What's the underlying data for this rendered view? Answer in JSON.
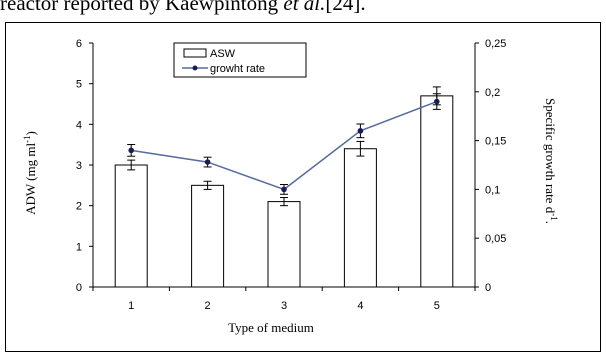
{
  "caption": {
    "prefix": "reactor reported by Kaewpintong ",
    "etal": "et al.",
    "ref": "[24]."
  },
  "chart_data": {
    "type": "bar",
    "categories": [
      "1",
      "2",
      "3",
      "4",
      "5"
    ],
    "xlabel": "Type of medium",
    "ylabel_left_main": "ADW (mg ml",
    "ylabel_left_sup": "-1",
    "ylabel_left_end": ")",
    "ylabel_right_main": "Specific growth rate d",
    "ylabel_right_sup": "-1",
    "ylabel_right_end": ".",
    "ylim_left": [
      0,
      6
    ],
    "ylim_right": [
      0,
      0.25
    ],
    "yticks_left": [
      "0",
      "1",
      "2",
      "3",
      "4",
      "5",
      "6"
    ],
    "yticks_right": [
      "0",
      "0,05",
      "0,1",
      "0,15",
      "0,2",
      "0,25"
    ],
    "series": [
      {
        "name": "ASW",
        "type": "bar",
        "axis": "left",
        "values": [
          3.0,
          2.5,
          2.1,
          3.4,
          4.7
        ],
        "errors": [
          0.12,
          0.1,
          0.1,
          0.18,
          0.22
        ]
      },
      {
        "name": "growht rate",
        "type": "line",
        "axis": "right",
        "values": [
          0.14,
          0.128,
          0.1,
          0.16,
          0.19
        ],
        "errors": [
          0.006,
          0.005,
          0.005,
          0.007,
          0.008
        ]
      }
    ],
    "legend": "top-left",
    "grid": false,
    "colors": {
      "bar_fill": "#ffffff",
      "bar_edge": "#000000",
      "line": "#556b9c",
      "marker": "#1a1a55"
    }
  }
}
